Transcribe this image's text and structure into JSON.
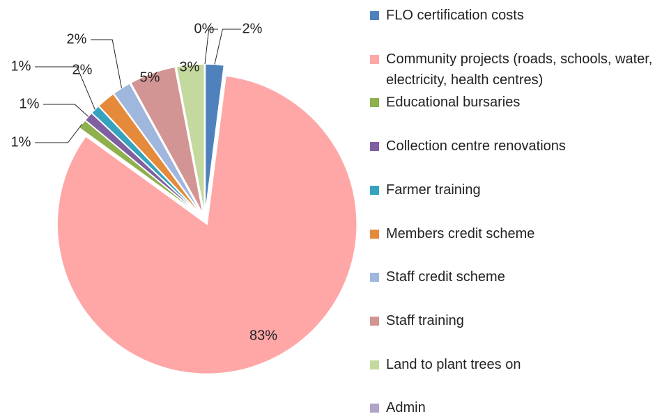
{
  "chart_data": {
    "type": "pie",
    "categories": [
      "FLO certification costs",
      "Community projects (roads, schools, water, electricity, health centres)",
      "Educational bursaries",
      "Collection centre renovations",
      "Farmer training",
      "Members credit scheme",
      "Staff credit scheme",
      "Staff training",
      "Land to plant trees on",
      "Admin"
    ],
    "values": [
      2,
      83,
      1,
      1,
      1,
      2,
      2,
      5,
      3,
      0
    ],
    "value_labels": [
      "2%",
      "83%",
      "1%",
      "1%",
      "1%",
      "2%",
      "2%",
      "5%",
      "3%",
      "0%"
    ],
    "colors": [
      "#4f81bd",
      "#ffa7a7",
      "#8eb04d",
      "#7f5fa0",
      "#35a3bd",
      "#e48a3a",
      "#9fb6dd",
      "#d39594",
      "#c4d99e",
      "#b2a3c8"
    ],
    "legend": "right"
  }
}
